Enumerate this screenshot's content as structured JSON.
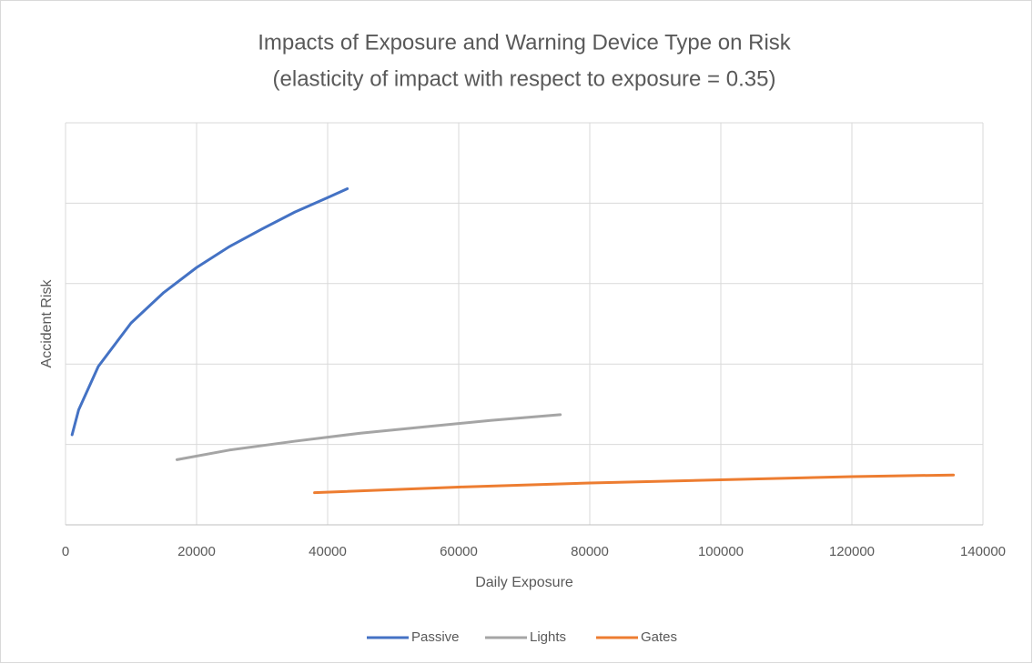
{
  "chart_data": {
    "type": "line",
    "title": "Impacts of Exposure and Warning Device Type on Risk",
    "subtitle": "(elasticity of impact with respect to exposure = 0.35)",
    "x_label": "Daily Exposure",
    "y_label": "Accident Risk",
    "xlim": [
      0,
      140000
    ],
    "xticks": [
      0,
      20000,
      40000,
      60000,
      80000,
      100000,
      120000,
      140000
    ],
    "ylim": [
      0,
      5
    ],
    "yticks": [
      0,
      1,
      2,
      3,
      4,
      5
    ],
    "ytick_labels": false,
    "grid": true,
    "legend": "bottom",
    "series": [
      {
        "name": "Passive",
        "color": "#4472c4",
        "x": [
          1000,
          2000,
          5000,
          10000,
          15000,
          20000,
          25000,
          30000,
          35000,
          40000,
          43000
        ],
        "values": [
          1.12,
          1.43,
          1.97,
          2.51,
          2.89,
          3.2,
          3.46,
          3.68,
          3.89,
          4.07,
          4.18
        ]
      },
      {
        "name": "Lights",
        "color": "#a5a5a5",
        "x": [
          17000,
          25000,
          35000,
          45000,
          55000,
          65000,
          75500
        ],
        "values": [
          0.81,
          0.93,
          1.04,
          1.14,
          1.22,
          1.3,
          1.37
        ]
      },
      {
        "name": "Gates",
        "color": "#ed7d31",
        "x": [
          38000,
          60000,
          80000,
          100000,
          120000,
          135500
        ],
        "values": [
          0.4,
          0.47,
          0.52,
          0.56,
          0.6,
          0.62
        ]
      }
    ]
  }
}
